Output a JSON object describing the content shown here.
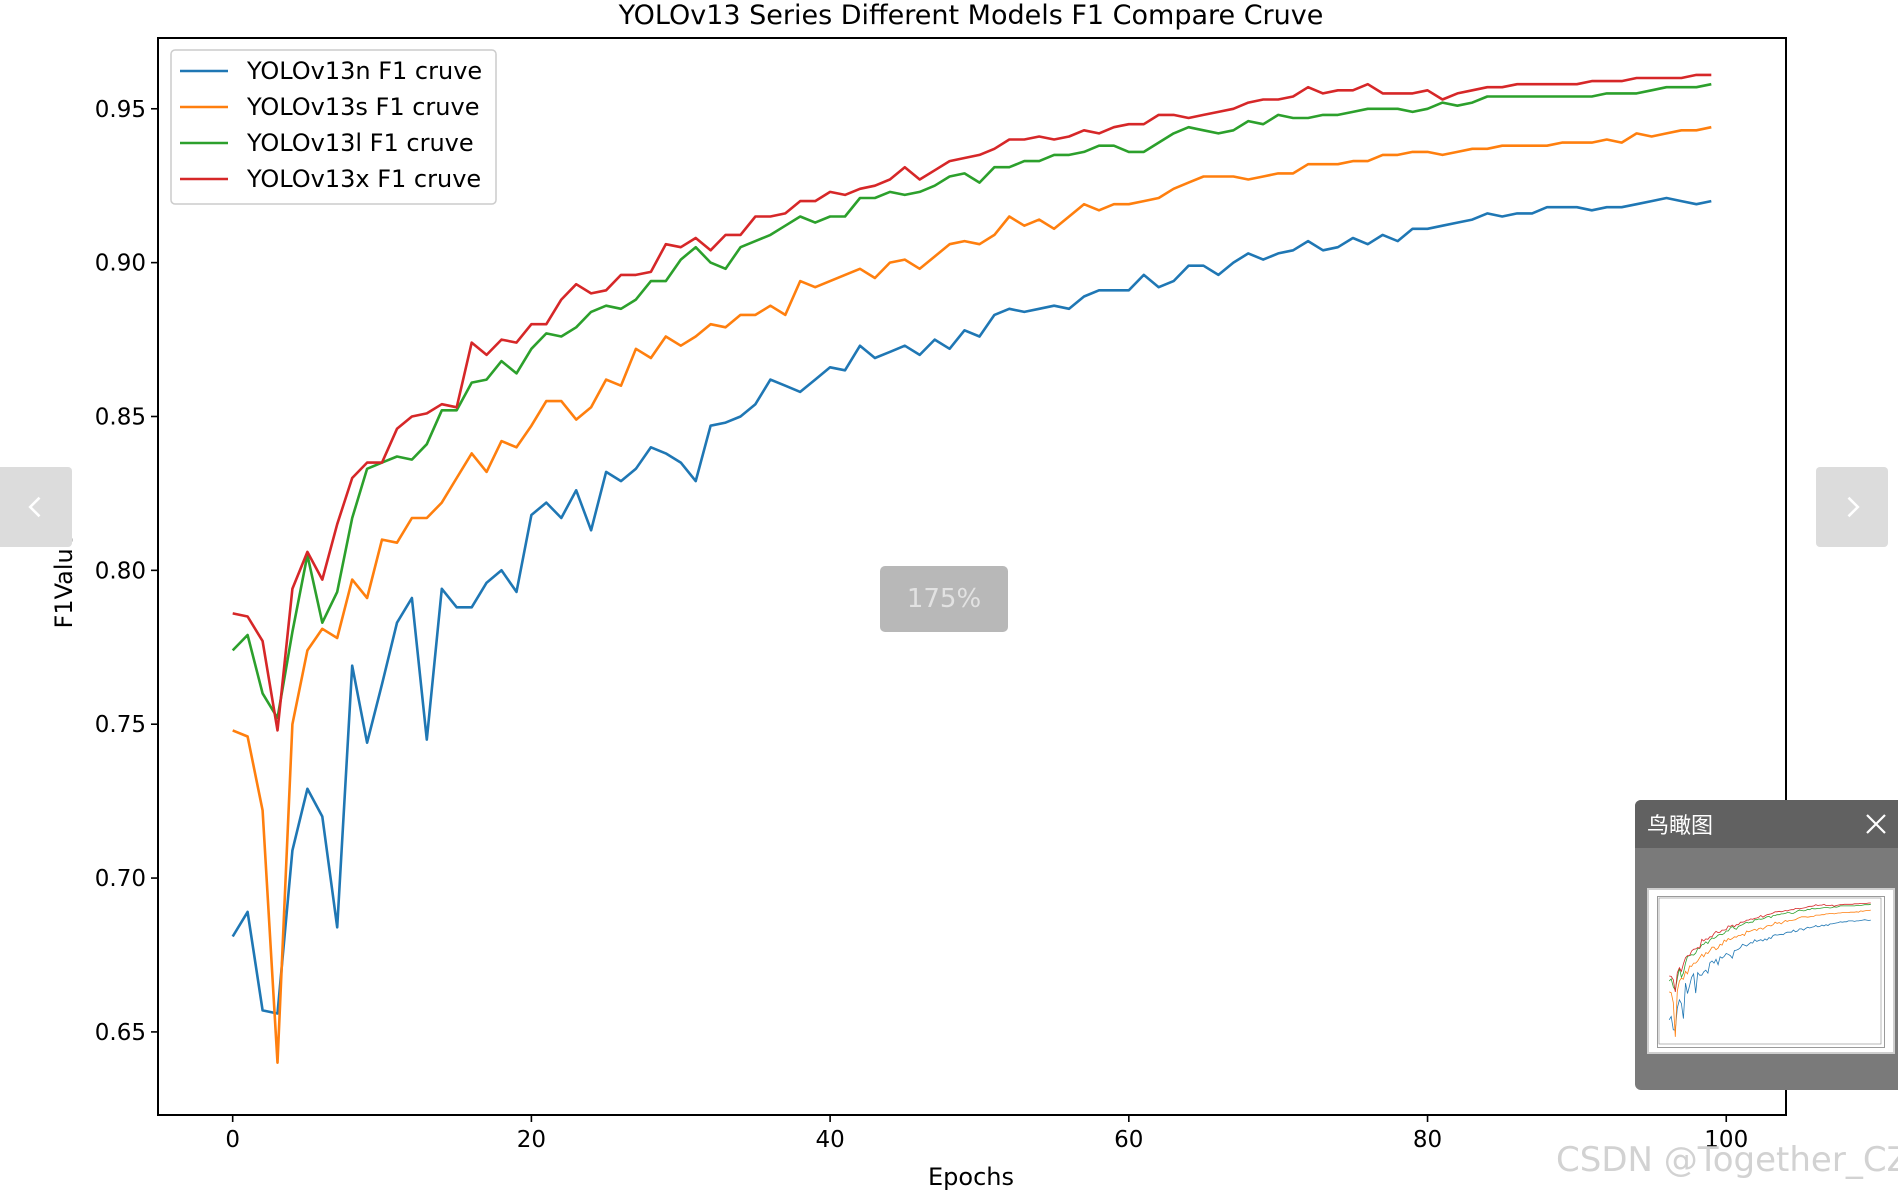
{
  "viewer": {
    "zoom_label": "175%",
    "prev_icon": "chevron-left-icon",
    "next_icon": "chevron-right-icon",
    "overview": {
      "title": "鸟瞰图",
      "close_icon": "close-icon"
    },
    "watermark": "CSDN @Together_CZ"
  },
  "chart_data": {
    "type": "line",
    "title": "YOLOv13 Series Different Models F1 Compare Cruve",
    "xlabel": "Epochs",
    "ylabel": "F1Value",
    "xlim": [
      -5,
      104
    ],
    "ylim": [
      0.623,
      0.973
    ],
    "xticks": [
      0,
      20,
      40,
      60,
      80,
      100
    ],
    "xtick_labels": [
      "0",
      "20",
      "40",
      "60",
      "80",
      "100"
    ],
    "yticks": [
      0.65,
      0.7,
      0.75,
      0.8,
      0.85,
      0.9,
      0.95
    ],
    "ytick_labels": [
      "0.65",
      "0.70",
      "0.75",
      "0.80",
      "0.85",
      "0.90",
      "0.95"
    ],
    "grid": false,
    "legend_position": "top-left",
    "series": [
      {
        "name": "YOLOv13n F1 cruve",
        "color": "#1f77b4",
        "values": [
          0.681,
          0.689,
          0.657,
          0.656,
          0.709,
          0.729,
          0.72,
          0.684,
          0.769,
          0.744,
          0.763,
          0.783,
          0.791,
          0.745,
          0.794,
          0.788,
          0.788,
          0.796,
          0.8,
          0.793,
          0.818,
          0.822,
          0.817,
          0.826,
          0.813,
          0.832,
          0.829,
          0.833,
          0.84,
          0.838,
          0.835,
          0.829,
          0.847,
          0.848,
          0.85,
          0.854,
          0.862,
          0.86,
          0.858,
          0.862,
          0.866,
          0.865,
          0.873,
          0.869,
          0.871,
          0.873,
          0.87,
          0.875,
          0.872,
          0.878,
          0.876,
          0.883,
          0.885,
          0.884,
          0.885,
          0.886,
          0.885,
          0.889,
          0.891,
          0.891,
          0.891,
          0.896,
          0.892,
          0.894,
          0.899,
          0.899,
          0.896,
          0.9,
          0.903,
          0.901,
          0.903,
          0.904,
          0.907,
          0.904,
          0.905,
          0.908,
          0.906,
          0.909,
          0.907,
          0.911,
          0.911,
          0.912,
          0.913,
          0.914,
          0.916,
          0.915,
          0.916,
          0.916,
          0.918,
          0.918,
          0.918,
          0.917,
          0.918,
          0.918,
          0.919,
          0.92,
          0.921,
          0.92,
          0.919,
          0.92
        ]
      },
      {
        "name": "YOLOv13s F1 cruve",
        "color": "#ff7f0e",
        "values": [
          0.748,
          0.746,
          0.722,
          0.64,
          0.75,
          0.774,
          0.781,
          0.778,
          0.797,
          0.791,
          0.81,
          0.809,
          0.817,
          0.817,
          0.822,
          0.83,
          0.838,
          0.832,
          0.842,
          0.84,
          0.847,
          0.855,
          0.855,
          0.849,
          0.853,
          0.862,
          0.86,
          0.872,
          0.869,
          0.876,
          0.873,
          0.876,
          0.88,
          0.879,
          0.883,
          0.883,
          0.886,
          0.883,
          0.894,
          0.892,
          0.894,
          0.896,
          0.898,
          0.895,
          0.9,
          0.901,
          0.898,
          0.902,
          0.906,
          0.907,
          0.906,
          0.909,
          0.915,
          0.912,
          0.914,
          0.911,
          0.915,
          0.919,
          0.917,
          0.919,
          0.919,
          0.92,
          0.921,
          0.924,
          0.926,
          0.928,
          0.928,
          0.928,
          0.927,
          0.928,
          0.929,
          0.929,
          0.932,
          0.932,
          0.932,
          0.933,
          0.933,
          0.935,
          0.935,
          0.936,
          0.936,
          0.935,
          0.936,
          0.937,
          0.937,
          0.938,
          0.938,
          0.938,
          0.938,
          0.939,
          0.939,
          0.939,
          0.94,
          0.939,
          0.942,
          0.941,
          0.942,
          0.943,
          0.943,
          0.944
        ]
      },
      {
        "name": "YOLOv13l F1 cruve",
        "color": "#2ca02c",
        "values": [
          0.774,
          0.779,
          0.76,
          0.752,
          0.78,
          0.805,
          0.783,
          0.793,
          0.817,
          0.833,
          0.835,
          0.837,
          0.836,
          0.841,
          0.852,
          0.852,
          0.861,
          0.862,
          0.868,
          0.864,
          0.872,
          0.877,
          0.876,
          0.879,
          0.884,
          0.886,
          0.885,
          0.888,
          0.894,
          0.894,
          0.901,
          0.905,
          0.9,
          0.898,
          0.905,
          0.907,
          0.909,
          0.912,
          0.915,
          0.913,
          0.915,
          0.915,
          0.921,
          0.921,
          0.923,
          0.922,
          0.923,
          0.925,
          0.928,
          0.929,
          0.926,
          0.931,
          0.931,
          0.933,
          0.933,
          0.935,
          0.935,
          0.936,
          0.938,
          0.938,
          0.936,
          0.936,
          0.939,
          0.942,
          0.944,
          0.943,
          0.942,
          0.943,
          0.946,
          0.945,
          0.948,
          0.947,
          0.947,
          0.948,
          0.948,
          0.949,
          0.95,
          0.95,
          0.95,
          0.949,
          0.95,
          0.952,
          0.951,
          0.952,
          0.954,
          0.954,
          0.954,
          0.954,
          0.954,
          0.954,
          0.954,
          0.954,
          0.955,
          0.955,
          0.955,
          0.956,
          0.957,
          0.957,
          0.957,
          0.958
        ]
      },
      {
        "name": "YOLOv13x F1 cruve",
        "color": "#d62728",
        "values": [
          0.786,
          0.785,
          0.777,
          0.748,
          0.794,
          0.806,
          0.797,
          0.815,
          0.83,
          0.835,
          0.835,
          0.846,
          0.85,
          0.851,
          0.854,
          0.853,
          0.874,
          0.87,
          0.875,
          0.874,
          0.88,
          0.88,
          0.888,
          0.893,
          0.89,
          0.891,
          0.896,
          0.896,
          0.897,
          0.906,
          0.905,
          0.908,
          0.904,
          0.909,
          0.909,
          0.915,
          0.915,
          0.916,
          0.92,
          0.92,
          0.923,
          0.922,
          0.924,
          0.925,
          0.927,
          0.931,
          0.927,
          0.93,
          0.933,
          0.934,
          0.935,
          0.937,
          0.94,
          0.94,
          0.941,
          0.94,
          0.941,
          0.943,
          0.942,
          0.944,
          0.945,
          0.945,
          0.948,
          0.948,
          0.947,
          0.948,
          0.949,
          0.95,
          0.952,
          0.953,
          0.953,
          0.954,
          0.957,
          0.955,
          0.956,
          0.956,
          0.958,
          0.955,
          0.955,
          0.955,
          0.956,
          0.953,
          0.955,
          0.956,
          0.957,
          0.957,
          0.958,
          0.958,
          0.958,
          0.958,
          0.958,
          0.959,
          0.959,
          0.959,
          0.96,
          0.96,
          0.96,
          0.96,
          0.961,
          0.961
        ]
      }
    ]
  }
}
